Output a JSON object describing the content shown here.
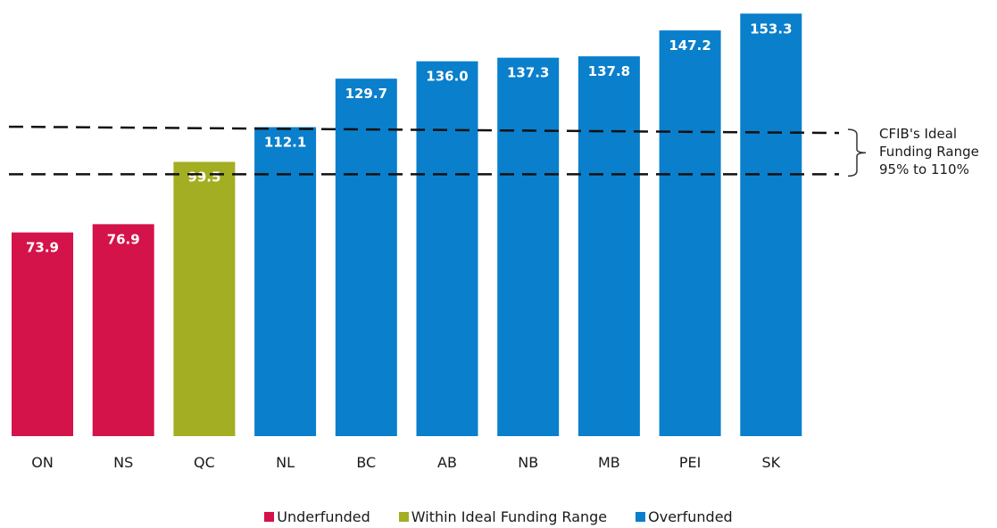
{
  "chart_data": {
    "type": "bar",
    "categories": [
      "ON",
      "NS",
      "QC",
      "NL",
      "BC",
      "AB",
      "NB",
      "MB",
      "PEI",
      "SK"
    ],
    "values": [
      73.9,
      76.9,
      99.5,
      112.1,
      129.7,
      136.0,
      137.3,
      137.8,
      147.2,
      153.3
    ],
    "value_labels": [
      "73.9",
      "76.9",
      "99.5",
      "112.1",
      "129.7",
      "136.0",
      "137.3",
      "137.8",
      "147.2",
      "153.3"
    ],
    "groups": [
      "Underfunded",
      "Underfunded",
      "Within Ideal Funding Range",
      "Overfunded",
      "Overfunded",
      "Overfunded",
      "Overfunded",
      "Overfunded",
      "Overfunded",
      "Overfunded"
    ],
    "series_colors": {
      "Underfunded": "#d4134a",
      "Within Ideal Funding Range": "#a4ae22",
      "Overfunded": "#0a7fcb"
    },
    "ylim": [
      0,
      155
    ],
    "reference_band": {
      "lower": 95,
      "upper": 110,
      "line_style": "dashed",
      "label_lines": [
        "CFIB's Ideal",
        "Funding Range",
        "95% to 110%"
      ]
    },
    "legend": {
      "placement": "bottom",
      "entries": [
        "Underfunded",
        "Within Ideal Funding Range",
        "Overfunded"
      ]
    },
    "grid": false
  }
}
